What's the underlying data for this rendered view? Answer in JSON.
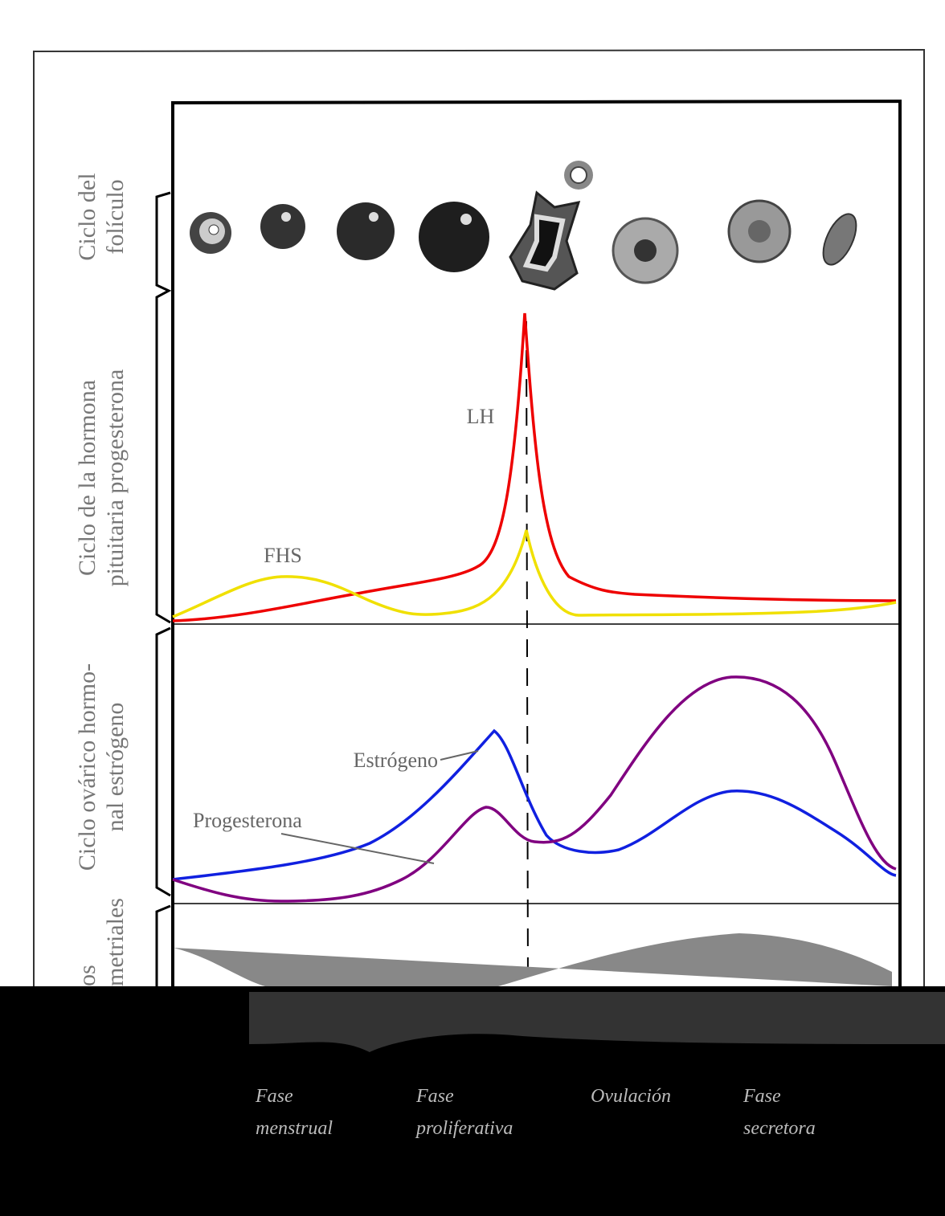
{
  "labels": {
    "follicle": [
      "Ciclo del",
      "folículo"
    ],
    "pituitary": [
      "Ciclo de la hormona",
      "pituitaria progesterona"
    ],
    "ovarian": [
      "Ciclo ovárico hormo-",
      "nal estrógeno"
    ],
    "endometrial": [
      "os",
      "metriales"
    ]
  },
  "curves": {
    "lh": "LH",
    "fhs": "FHS",
    "estrogen": "Estrógeno",
    "progesterone": "Progesterona"
  },
  "phases": [
    [
      "Fase",
      "menstrual"
    ],
    [
      "Fase",
      "proliferativa"
    ],
    [
      "Ovulación"
    ],
    [
      "Fase",
      "secretora"
    ]
  ]
}
